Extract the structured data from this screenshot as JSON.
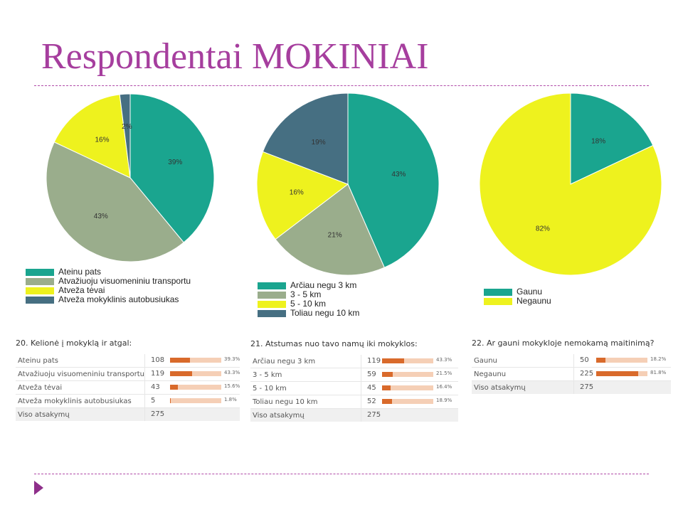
{
  "slide": {
    "title": "Respondentai MOKINIAI",
    "accent_color": "#a63e9e"
  },
  "chart_data": [
    {
      "type": "pie",
      "categories": [
        "Ateinu pats",
        "Atvažiuoju visuomeniniu transportu",
        "Atveža tėvai",
        "Atveža mokyklinis autobusiukas"
      ],
      "values": [
        39,
        43,
        16,
        2
      ],
      "value_labels": [
        "39%",
        "43%",
        "16%",
        "2%"
      ],
      "colors": [
        "#1aa58f",
        "#9aad8c",
        "#eef21e",
        "#466f82"
      ],
      "legend": "bottom-left"
    },
    {
      "type": "pie",
      "categories": [
        "Arčiau negu 3 km",
        "3 - 5 km",
        "5 - 10 km",
        "Toliau negu 10 km"
      ],
      "values": [
        43,
        21,
        16,
        19
      ],
      "value_labels": [
        "43%",
        "21%",
        "16%",
        "19%"
      ],
      "colors": [
        "#1aa58f",
        "#9aad8c",
        "#eef21e",
        "#466f82"
      ],
      "legend": "bottom-left"
    },
    {
      "type": "pie",
      "categories": [
        "Gaunu",
        "Negaunu"
      ],
      "values": [
        18,
        82
      ],
      "value_labels": [
        "18%",
        "82%"
      ],
      "colors": [
        "#1aa58f",
        "#eef21e"
      ],
      "legend": "bottom-left"
    }
  ],
  "tables": [
    {
      "question": "20. Kelionė į mokyklą ir atgal:",
      "rows": [
        {
          "label": "Ateinu pats",
          "count": "108",
          "pct_label": "39.3%",
          "pct": 39.3
        },
        {
          "label": "Atvažiuoju visuomeniniu transportu",
          "count": "119",
          "pct_label": "43.3%",
          "pct": 43.3
        },
        {
          "label": "Atveža tėvai",
          "count": "43",
          "pct_label": "15.6%",
          "pct": 15.6
        },
        {
          "label": "Atveža mokyklinis autobusiukas",
          "count": "5",
          "pct_label": "1.8%",
          "pct": 1.8
        }
      ],
      "total_label": "Viso atsakymų",
      "total_count": "275"
    },
    {
      "question": "21. Atstumas nuo tavo namų iki mokyklos:",
      "rows": [
        {
          "label": "Arčiau negu 3 km",
          "count": "119",
          "pct_label": "43.3%",
          "pct": 43.3
        },
        {
          "label": "3 - 5 km",
          "count": "59",
          "pct_label": "21.5%",
          "pct": 21.5
        },
        {
          "label": "5 - 10 km",
          "count": "45",
          "pct_label": "16.4%",
          "pct": 16.4
        },
        {
          "label": "Toliau negu 10 km",
          "count": "52",
          "pct_label": "18.9%",
          "pct": 18.9
        }
      ],
      "total_label": "Viso atsakymų",
      "total_count": "275"
    },
    {
      "question": "22. Ar gauni mokykloje nemokamą maitinimą?",
      "rows": [
        {
          "label": "Gaunu",
          "count": "50",
          "pct_label": "18.2%",
          "pct": 18.2
        },
        {
          "label": "Negaunu",
          "count": "225",
          "pct_label": "81.8%",
          "pct": 81.8
        }
      ],
      "total_label": "Viso atsakymų",
      "total_count": "275"
    }
  ]
}
